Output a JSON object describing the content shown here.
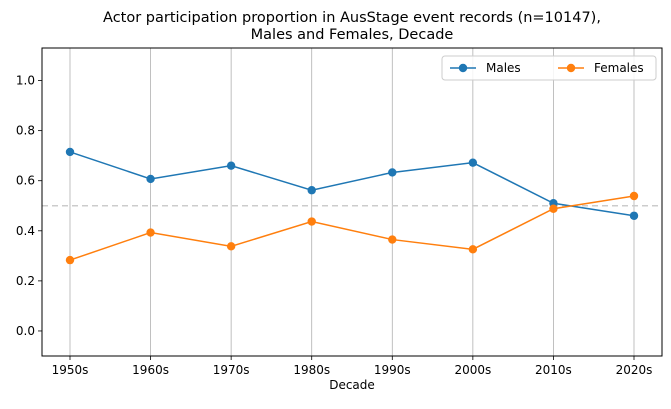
{
  "chart_data": {
    "type": "line",
    "title": [
      "Actor participation proportion in AusStage event records (n=10147),",
      "Males and Females, Decade"
    ],
    "xlabel": "Decade",
    "ylabel": "",
    "categories": [
      "1950s",
      "1960s",
      "1970s",
      "1980s",
      "1990s",
      "2000s",
      "2010s",
      "2020s"
    ],
    "ylim": [
      -0.1,
      1.13
    ],
    "yticks": [
      "0.0",
      "0.2",
      "0.4",
      "0.6",
      "0.8",
      "1.0"
    ],
    "grid": "vertical",
    "reference_line": {
      "y": 0.5,
      "style": "dashed",
      "color": "#cccccc"
    },
    "legend": {
      "placement": "top-right",
      "columns": 2
    },
    "series": [
      {
        "name": "Males",
        "color": "#1f77b4",
        "values": [
          0.715,
          0.607,
          0.66,
          0.562,
          0.633,
          0.672,
          0.51,
          0.46
        ]
      },
      {
        "name": "Females",
        "color": "#ff7f0e",
        "values": [
          0.283,
          0.393,
          0.338,
          0.437,
          0.365,
          0.326,
          0.488,
          0.539
        ]
      }
    ]
  }
}
